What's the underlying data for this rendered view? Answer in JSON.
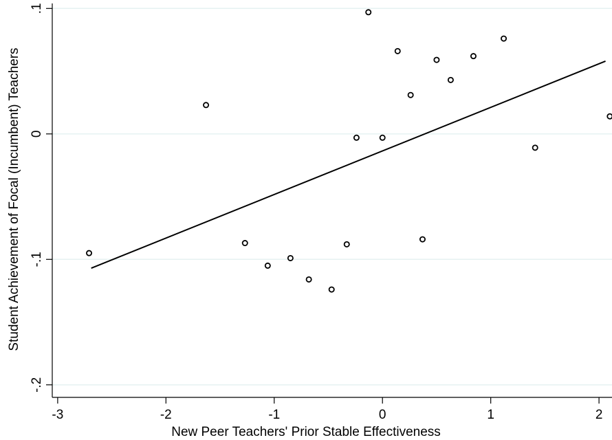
{
  "chart_data": {
    "type": "scatter",
    "title": "",
    "xlabel": "New Peer Teachers' Prior Stable Effectiveness",
    "ylabel": "Student Achievement of Focal (Incumbent) Teachers",
    "xlim": [
      -3.05,
      2.12
    ],
    "ylim": [
      -0.21,
      0.104
    ],
    "xticks": [
      -3,
      -2,
      -1,
      0,
      1,
      2
    ],
    "xtick_labels": [
      "-3",
      "-2",
      "-1",
      "0",
      "1",
      "2"
    ],
    "yticks": [
      0.1,
      0,
      -0.1,
      -0.2
    ],
    "ytick_labels": [
      ".1",
      "0",
      "-.1",
      "-.2"
    ],
    "grid": "horizontal",
    "legend": "none",
    "colors": {
      "points": "#000000",
      "fit_line": "#000000",
      "grid": "#e6f2f2"
    },
    "points": [
      {
        "x": -2.71,
        "y": -0.095
      },
      {
        "x": -1.63,
        "y": 0.023
      },
      {
        "x": -1.27,
        "y": -0.087
      },
      {
        "x": -1.06,
        "y": -0.105
      },
      {
        "x": -0.85,
        "y": -0.099
      },
      {
        "x": -0.68,
        "y": -0.116
      },
      {
        "x": -0.47,
        "y": -0.124
      },
      {
        "x": -0.33,
        "y": -0.088
      },
      {
        "x": -0.24,
        "y": -0.003
      },
      {
        "x": -0.13,
        "y": 0.097
      },
      {
        "x": 0.0,
        "y": -0.003
      },
      {
        "x": 0.14,
        "y": 0.066
      },
      {
        "x": 0.26,
        "y": 0.031
      },
      {
        "x": 0.37,
        "y": -0.084
      },
      {
        "x": 0.5,
        "y": 0.059
      },
      {
        "x": 0.63,
        "y": 0.043
      },
      {
        "x": 0.84,
        "y": 0.062
      },
      {
        "x": 1.12,
        "y": 0.076
      },
      {
        "x": 1.41,
        "y": -0.011
      },
      {
        "x": 2.1,
        "y": 0.014
      }
    ],
    "fit_line": {
      "x": [
        -2.69,
        2.06
      ],
      "y": [
        -0.107,
        0.058
      ]
    }
  }
}
